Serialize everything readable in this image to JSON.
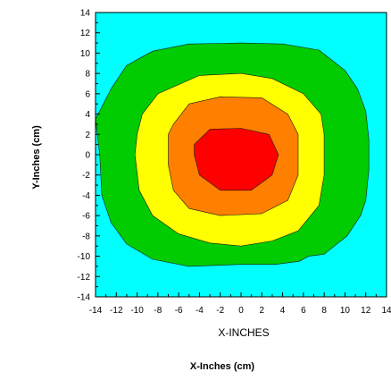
{
  "chart_data": {
    "type": "contour",
    "xlabel": "X-INCHES",
    "outer_xlabel": "X-Inches (cm)",
    "ylabel": "Y-Inches (cm)",
    "xlim": [
      -14,
      14
    ],
    "ylim": [
      -14,
      14
    ],
    "x_ticks": [
      -14,
      -12,
      -10,
      -8,
      -6,
      -4,
      -2,
      0,
      2,
      4,
      6,
      8,
      10,
      12,
      14
    ],
    "y_ticks": [
      -14,
      -12,
      -10,
      -8,
      -6,
      -4,
      -2,
      0,
      2,
      4,
      6,
      8,
      10,
      12,
      14
    ],
    "background_color": "#00ffff",
    "grid": false,
    "levels": [
      {
        "color": "#00cc00",
        "points": [
          [
            -14,
            3.5
          ],
          [
            -13.5,
            4.5
          ],
          [
            -12.5,
            6.5
          ],
          [
            -11,
            8.8
          ],
          [
            -8.5,
            10.2
          ],
          [
            -5,
            10.9
          ],
          [
            0,
            11
          ],
          [
            4,
            10.9
          ],
          [
            7.5,
            10.3
          ],
          [
            10,
            8.3
          ],
          [
            11.2,
            6.5
          ],
          [
            12,
            4.3
          ],
          [
            12.3,
            1.5
          ],
          [
            12.3,
            -1.5
          ],
          [
            12,
            -4.5
          ],
          [
            11.5,
            -6
          ],
          [
            10.2,
            -8
          ],
          [
            8,
            -9.8
          ],
          [
            6.5,
            -10
          ],
          [
            5.6,
            -10.5
          ],
          [
            3.3,
            -10.8
          ],
          [
            0,
            -10.8
          ],
          [
            -5,
            -11
          ],
          [
            -8.5,
            -10.3
          ],
          [
            -11,
            -8.8
          ],
          [
            -12.5,
            -6.7
          ],
          [
            -13.4,
            -4
          ],
          [
            -13.6,
            0
          ]
        ]
      },
      {
        "color": "#ffff00",
        "points": [
          [
            -10,
            2
          ],
          [
            -9.5,
            4
          ],
          [
            -8,
            6
          ],
          [
            -4,
            7.8
          ],
          [
            0,
            8
          ],
          [
            3,
            7.5
          ],
          [
            6,
            6
          ],
          [
            7.7,
            4
          ],
          [
            8,
            2
          ],
          [
            8,
            -2
          ],
          [
            7.5,
            -5
          ],
          [
            5.5,
            -7.5
          ],
          [
            3,
            -8.5
          ],
          [
            0,
            -9
          ],
          [
            -3,
            -8.7
          ],
          [
            -6,
            -7.8
          ],
          [
            -8.5,
            -6
          ],
          [
            -9.8,
            -3.5
          ],
          [
            -10.2,
            0
          ]
        ]
      },
      {
        "color": "#ff7f00",
        "points": [
          [
            -7,
            2
          ],
          [
            -6.5,
            3
          ],
          [
            -5,
            5
          ],
          [
            -2,
            5.7
          ],
          [
            2,
            5.6
          ],
          [
            4.5,
            4
          ],
          [
            5.5,
            2
          ],
          [
            5.5,
            -2
          ],
          [
            4.5,
            -4.5
          ],
          [
            2,
            -5.8
          ],
          [
            -2,
            -6
          ],
          [
            -5,
            -5.3
          ],
          [
            -6.5,
            -3.5
          ],
          [
            -7,
            -1
          ]
        ]
      },
      {
        "color": "#ff0000",
        "points": [
          [
            -4.5,
            1
          ],
          [
            -3,
            2.5
          ],
          [
            0,
            2.6
          ],
          [
            2.7,
            2
          ],
          [
            3.6,
            0
          ],
          [
            3,
            -2
          ],
          [
            1,
            -3.5
          ],
          [
            -2,
            -3.5
          ],
          [
            -4,
            -2
          ],
          [
            -4.5,
            0
          ]
        ]
      }
    ]
  }
}
